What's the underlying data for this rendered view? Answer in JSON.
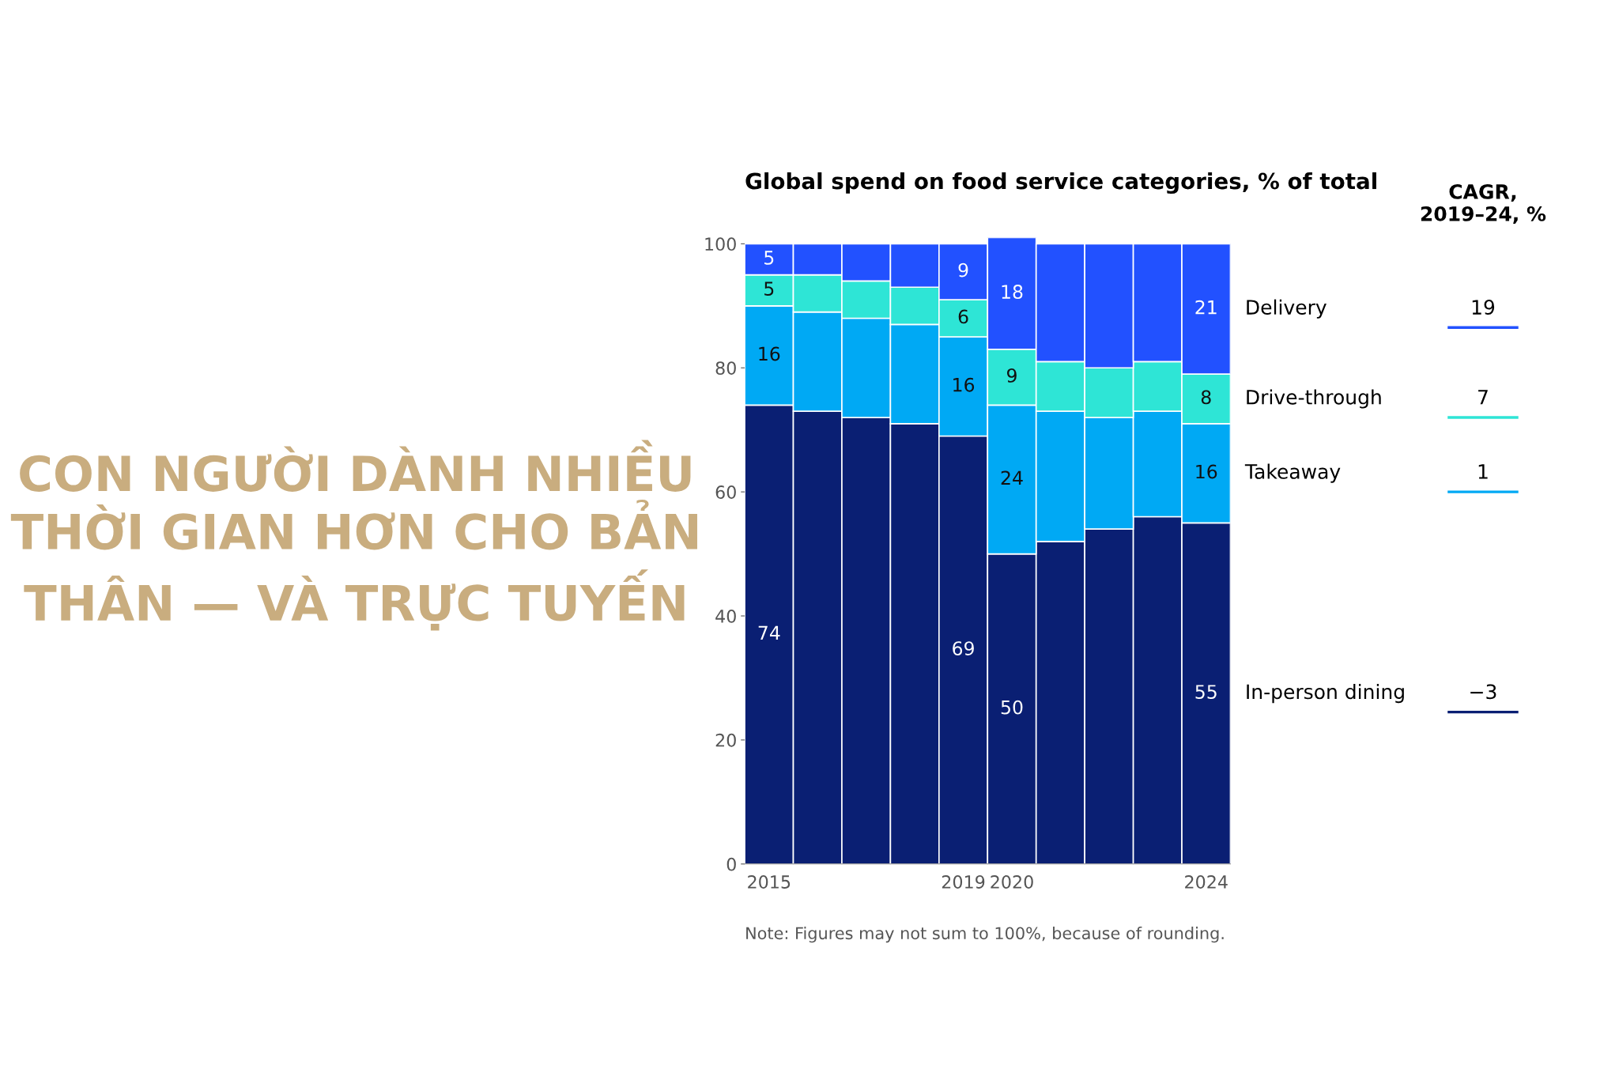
{
  "chart_data": {
    "type": "bar",
    "stacked": true,
    "title": "CON NGƯỜI DÀNH NHIỀU THỜI GIAN HƠN CHO BẢN THÂN — VÀ TRỰC TUYẾN",
    "subtitle": "Global spend on food service categories, % of total",
    "categories": [
      "2015",
      null,
      null,
      null,
      "2019",
      "2020",
      null,
      null,
      null,
      "2024"
    ],
    "series": [
      {
        "name": "In-person dining",
        "color": "#0a1f73",
        "values": [
          74,
          73,
          72,
          71,
          69,
          50,
          52,
          54,
          56,
          55
        ],
        "value_labels": [
          "74",
          null,
          null,
          null,
          "69",
          "50",
          null,
          null,
          null,
          "55"
        ]
      },
      {
        "name": "Takeaway",
        "color": "#00a9f4",
        "values": [
          16,
          16,
          16,
          16,
          16,
          24,
          21,
          18,
          17,
          16
        ],
        "value_labels": [
          "16",
          null,
          null,
          null,
          "16",
          "24",
          null,
          null,
          null,
          "16"
        ]
      },
      {
        "name": "Drive-through",
        "color": "#2ee5d6",
        "values": [
          5,
          6,
          6,
          6,
          6,
          9,
          8,
          8,
          8,
          8
        ],
        "value_labels": [
          "5",
          null,
          null,
          null,
          "6",
          "9",
          null,
          null,
          null,
          "8"
        ]
      },
      {
        "name": "Delivery",
        "color": "#2251ff",
        "values": [
          5,
          5,
          6,
          7,
          9,
          18,
          19,
          20,
          19,
          21
        ],
        "value_labels": [
          "5",
          null,
          null,
          null,
          "9",
          "18",
          null,
          null,
          null,
          "21"
        ]
      }
    ],
    "ylim": [
      0,
      101
    ],
    "yticks": [
      0,
      20,
      40,
      60,
      80,
      100
    ],
    "grid": false,
    "legend": "right",
    "annotations": [
      "CAGR,\n2019–24, %",
      "−3",
      "1",
      "7",
      "19",
      "Note: Figures may not sum to 100%, because of rounding."
    ]
  }
}
